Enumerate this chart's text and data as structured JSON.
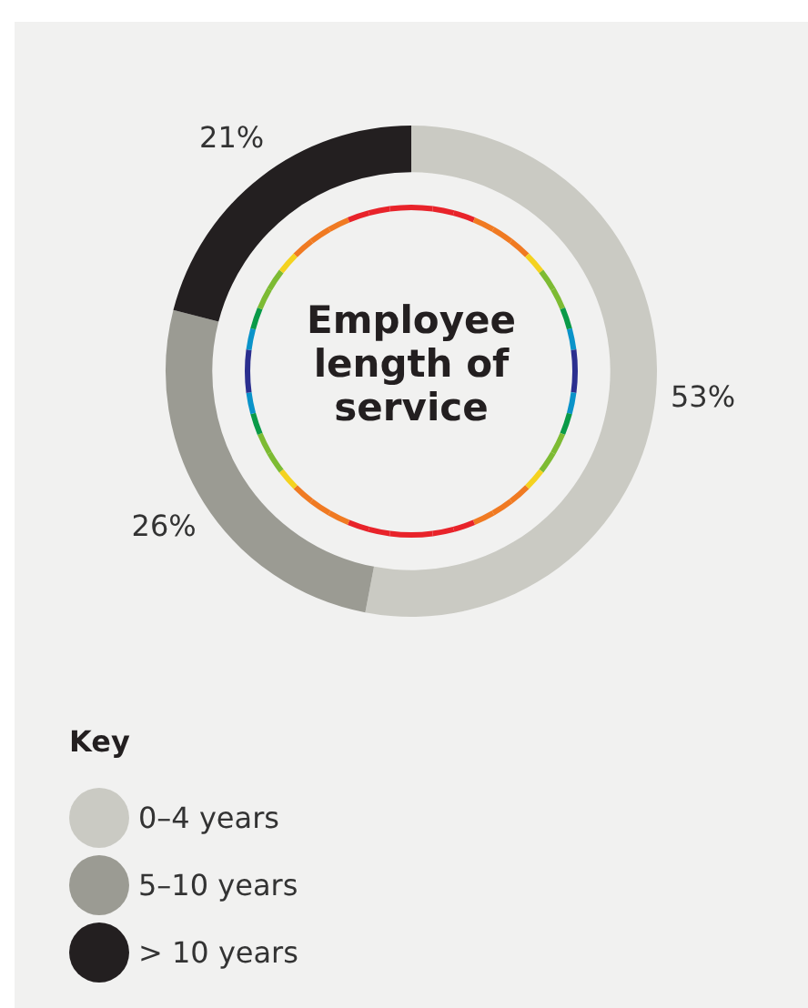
{
  "chart_data": {
    "type": "donut",
    "title": "Employee length of service",
    "legend_title": "Key",
    "legend": "bottom",
    "categories": [
      "0–4 years",
      "5–10 years",
      "> 10 years"
    ],
    "values": [
      53,
      26,
      21
    ],
    "colors": [
      "#cacac3",
      "#9b9b93",
      "#231f20"
    ],
    "value_labels": [
      "53%",
      "26%",
      "21%"
    ]
  }
}
